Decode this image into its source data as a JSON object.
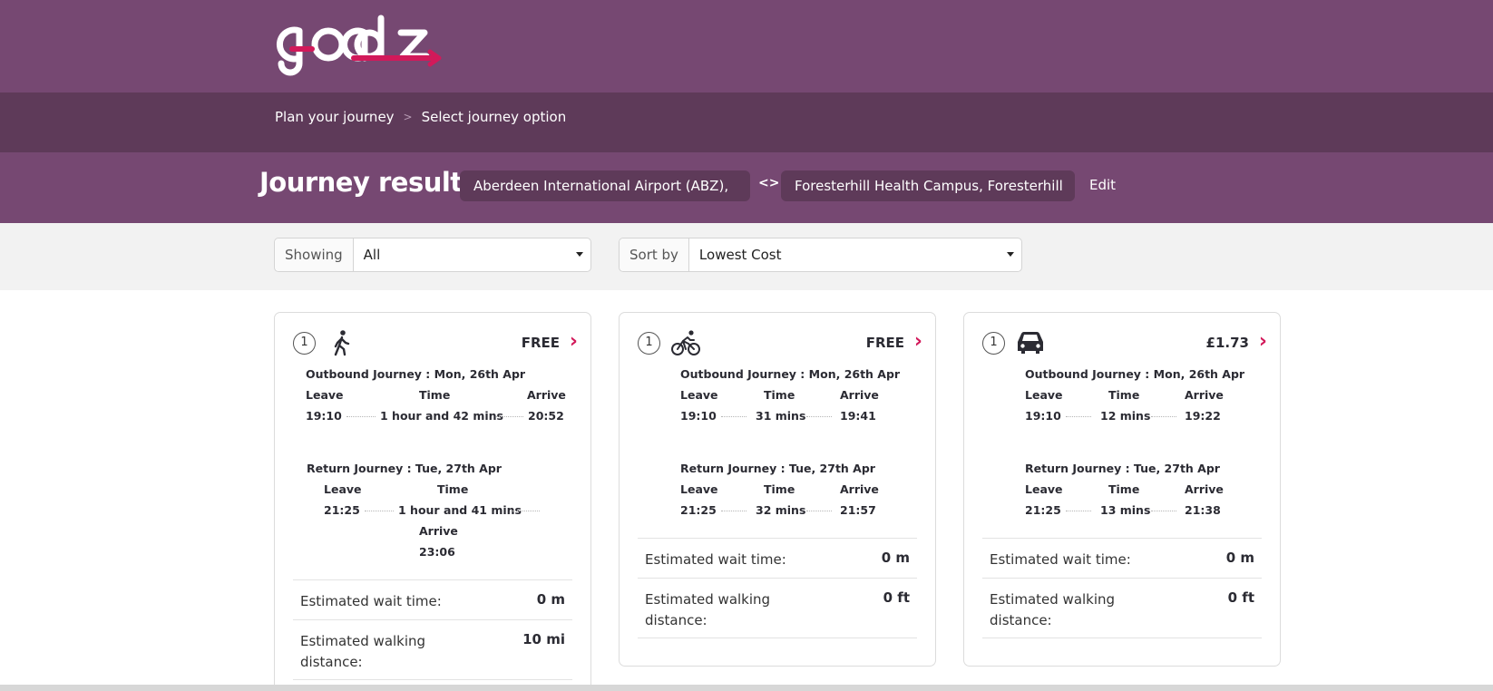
{
  "header": {
    "brand": "go abz"
  },
  "breadcrumb": {
    "items": [
      "Plan your journey",
      "Select journey option"
    ],
    "separator": ">"
  },
  "results": {
    "title": "Journey results",
    "from": "Aberdeen International Airport (ABZ),",
    "to": "Foresterhill Health Campus, Foresterhill",
    "swap_symbol": "<>",
    "edit_label": "Edit"
  },
  "filters": {
    "showing_label": "Showing",
    "showing_value": "All",
    "sort_label": "Sort by",
    "sort_value": "Lowest Cost"
  },
  "cards": [
    {
      "index": "1",
      "mode_icon": "walking-icon",
      "price": "FREE",
      "outbound": {
        "title": "Outbound Journey : Mon, 26th Apr",
        "leave_label": "Leave",
        "time_label": "Time",
        "arrive_label": "Arrive",
        "leave": "19:10",
        "time": "1 hour and 42 mins",
        "arrive": "20:52"
      },
      "return": {
        "title": "Return Journey : Tue, 27th Apr",
        "leave_label": "Leave",
        "time_label": "Time",
        "arrive_label": "Arrive",
        "leave": "21:25",
        "time": "1 hour and 41 mins",
        "arrive": "23:06"
      },
      "wait_label": "Estimated wait time:",
      "wait_value": "0 m",
      "walk_label": "Estimated walking distance:",
      "walk_value": "10 mi"
    },
    {
      "index": "1",
      "mode_icon": "cycling-icon",
      "price": "FREE",
      "outbound": {
        "title": "Outbound Journey : Mon, 26th Apr",
        "leave_label": "Leave",
        "time_label": "Time",
        "arrive_label": "Arrive",
        "leave": "19:10",
        "time": "31 mins",
        "arrive": "19:41"
      },
      "return": {
        "title": "Return Journey : Tue, 27th Apr",
        "leave_label": "Leave",
        "time_label": "Time",
        "arrive_label": "Arrive",
        "leave": "21:25",
        "time": "32 mins",
        "arrive": "21:57"
      },
      "wait_label": "Estimated wait time:",
      "wait_value": "0 m",
      "walk_label": "Estimated walking distance:",
      "walk_value": "0 ft"
    },
    {
      "index": "1",
      "mode_icon": "car-icon",
      "price": "£1.73",
      "outbound": {
        "title": "Outbound Journey : Mon, 26th Apr",
        "leave_label": "Leave",
        "time_label": "Time",
        "arrive_label": "Arrive",
        "leave": "19:10",
        "time": "12 mins",
        "arrive": "19:22"
      },
      "return": {
        "title": "Return Journey : Tue, 27th Apr",
        "leave_label": "Leave",
        "time_label": "Time",
        "arrive_label": "Arrive",
        "leave": "21:25",
        "time": "13 mins",
        "arrive": "21:38"
      },
      "wait_label": "Estimated wait time:",
      "wait_value": "0 m",
      "walk_label": "Estimated walking distance:",
      "walk_value": "0 ft"
    }
  ],
  "colors": {
    "header_purple": "#764872",
    "header_dark": "#5e3a59",
    "accent_pink": "#d2195a"
  }
}
